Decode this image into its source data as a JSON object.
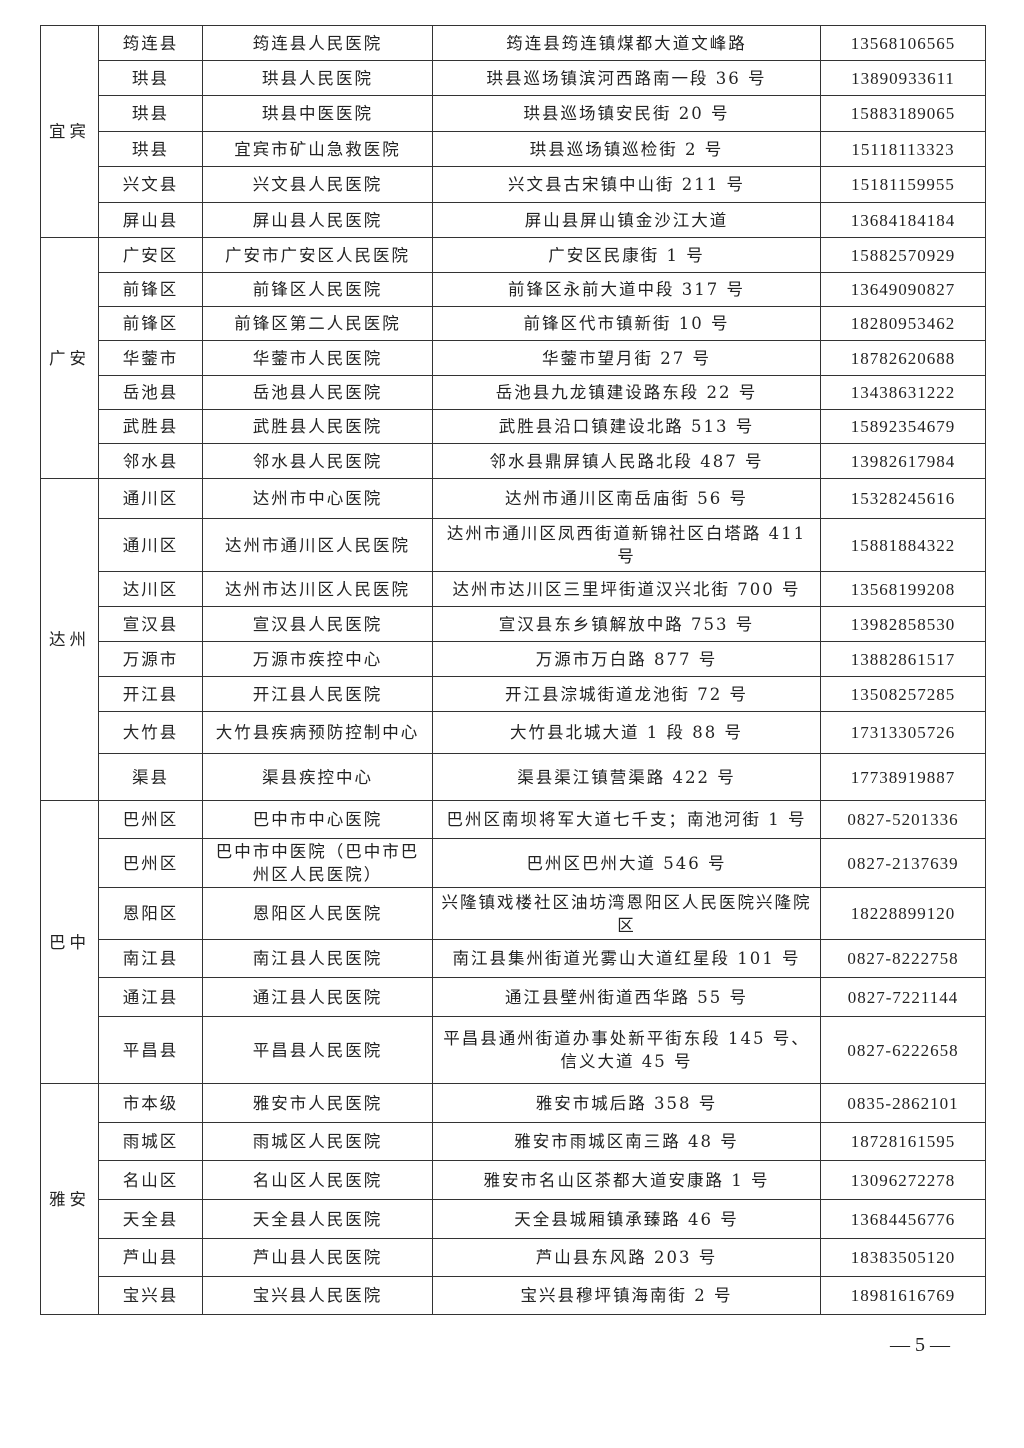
{
  "groups": [
    {
      "city": "宜宾",
      "rows": [
        [
          "筠连县",
          "筠连县人民医院",
          "筠连县筠连镇煤都大道文峰路",
          "13568106565"
        ],
        [
          "珙县",
          "珙县人民医院",
          "珙县巡场镇滨河西路南一段 36 号",
          "13890933611"
        ],
        [
          "珙县",
          "珙县中医医院",
          "珙县巡场镇安民街 20 号",
          "15883189065"
        ],
        [
          "珙县",
          "宜宾市矿山急救医院",
          "珙县巡场镇巡检街 2 号",
          "15118113323"
        ],
        [
          "兴文县",
          "兴文县人民医院",
          "兴文县古宋镇中山街 211 号",
          "15181159955"
        ],
        [
          "屏山县",
          "屏山县人民医院",
          "屏山县屏山镇金沙江大道",
          "13684184184"
        ]
      ]
    },
    {
      "city": "广安",
      "rows": [
        [
          "广安区",
          "广安市广安区人民医院",
          "广安区民康街 1 号",
          "15882570929"
        ],
        [
          "前锋区",
          "前锋区人民医院",
          "前锋区永前大道中段 317 号",
          "13649090827"
        ],
        [
          "前锋区",
          "前锋区第二人民医院",
          "前锋区代市镇新街 10 号",
          "18280953462"
        ],
        [
          "华蓥市",
          "华蓥市人民医院",
          "华蓥市望月街 27 号",
          "18782620688"
        ],
        [
          "岳池县",
          "岳池县人民医院",
          "岳池县九龙镇建设路东段 22 号",
          "13438631222"
        ],
        [
          "武胜县",
          "武胜县人民医院",
          "武胜县沿口镇建设北路 513 号",
          "15892354679"
        ],
        [
          "邻水县",
          "邻水县人民医院",
          "邻水县鼎屏镇人民路北段 487 号",
          "13982617984"
        ]
      ]
    },
    {
      "city": "达州",
      "rows": [
        [
          "通川区",
          "达州市中心医院",
          "达州市通川区南岳庙街 56 号",
          "15328245616"
        ],
        [
          "通川区",
          "达州市通川区人民医院",
          "达州市通川区凤西街道新锦社区白塔路 411 号",
          "15881884322"
        ],
        [
          "达川区",
          "达州市达川区人民医院",
          "达州市达川区三里坪街道汉兴北街 700 号",
          "13568199208"
        ],
        [
          "宣汉县",
          "宣汉县人民医院",
          "宣汉县东乡镇解放中路 753 号",
          "13982858530"
        ],
        [
          "万源市",
          "万源市疾控中心",
          "万源市万白路 877 号",
          "13882861517"
        ],
        [
          "开江县",
          "开江县人民医院",
          "开江县淙城街道龙池街 72 号",
          "13508257285"
        ],
        [
          "大竹县",
          "大竹县疾病预防控制中心",
          "大竹县北城大道 1 段 88 号",
          "17313305726"
        ],
        [
          "渠县",
          "渠县疾控中心",
          "渠县渠江镇营渠路 422 号",
          "17738919887"
        ]
      ]
    },
    {
      "city": "巴中",
      "rows": [
        [
          "巴州区",
          "巴中市中心医院",
          "巴州区南坝将军大道七千支；南池河街 1 号",
          "0827-5201336"
        ],
        [
          "巴州区",
          "巴中市中医院（巴中市巴州区人民医院）",
          "巴州区巴州大道 546 号",
          "0827-2137639"
        ],
        [
          "恩阳区",
          "恩阳区人民医院",
          "兴隆镇戏楼社区油坊湾恩阳区人民医院兴隆院区",
          "18228899120"
        ],
        [
          "南江县",
          "南江县人民医院",
          "南江县集州街道光雾山大道红星段 101 号",
          "0827-8222758"
        ],
        [
          "通江县",
          "通江县人民医院",
          "通江县壁州街道西华路 55 号",
          "0827-7221144"
        ],
        [
          "平昌县",
          "平昌县人民医院",
          "平昌县通州街道办事处新平街东段 145 号、信义大道 45 号",
          "0827-6222658"
        ]
      ]
    },
    {
      "city": "雅安",
      "rows": [
        [
          "市本级",
          "雅安市人民医院",
          "雅安市城后路 358 号",
          "0835-2862101"
        ],
        [
          "雨城区",
          "雨城区人民医院",
          "雅安市雨城区南三路 48 号",
          "18728161595"
        ],
        [
          "名山区",
          "名山区人民医院",
          "雅安市名山区茶都大道安康路 1 号",
          "13096272278"
        ],
        [
          "天全县",
          "天全县人民医院",
          "天全县城厢镇承臻路 46 号",
          "13684456776"
        ],
        [
          "芦山县",
          "芦山县人民医院",
          "芦山县东风路 203 号",
          "18383505120"
        ],
        [
          "宝兴县",
          "宝兴县人民医院",
          "宝兴县穆坪镇海南街 2 号",
          "18981616769"
        ]
      ]
    }
  ],
  "page_number": "— 5 —"
}
